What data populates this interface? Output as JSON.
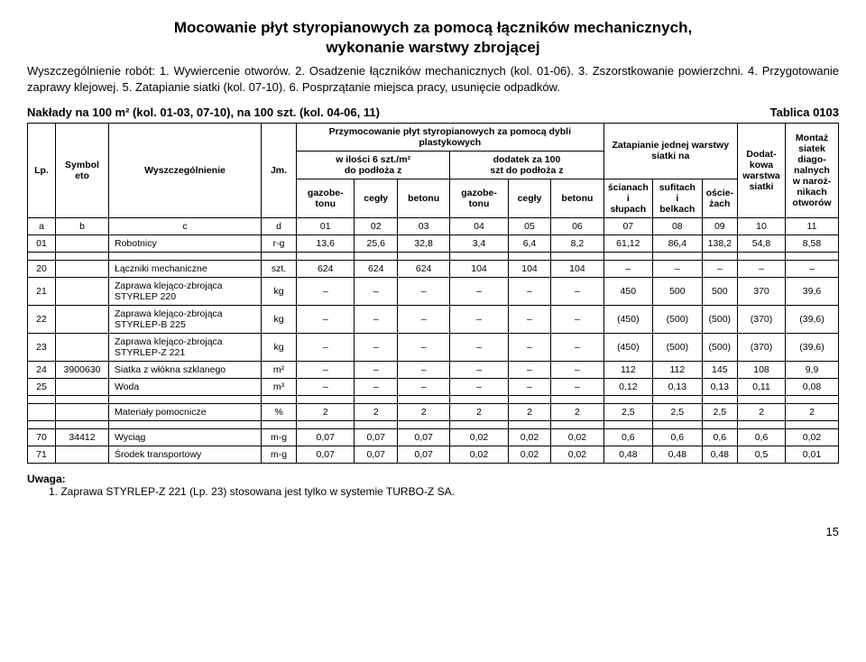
{
  "title_line1": "Mocowanie płyt styropianowych za pomocą łączników mechanicznych,",
  "title_line2": "wykonanie warstwy zbrojącej",
  "description": "Wyszczególnienie robót: 1. Wywiercenie otworów. 2. Osadzenie łączników mechanicznych (kol. 01-06). 3. Zszorstkowanie powierzchni. 4. Przygotowanie zaprawy klejowej. 5. Zatapianie siatki (kol. 07-10). 6. Posprzątanie miejsca pracy, usunięcie odpadków.",
  "naklady": "Nakłady na 100 m² (kol. 01-03, 07-10), na 100 szt. (kol. 04-06, 11)",
  "tablica": "Tablica 0103",
  "header": {
    "lp": "Lp.",
    "symbol": "Symbol\neto",
    "wysz": "Wyszczególnienie",
    "jm": "Jm.",
    "group1": "Przymocowanie płyt styropianowych za pomocą dybli plastykowych",
    "sub1": "w ilości 6 szt./m²\ndo podłoża z",
    "sub2": "dodatek za 100\nszt do podłoża z",
    "group2": "Zatapianie jednej warstwy\nsiatki na",
    "dodat": "Dodat-\nkowa\nwarstwa\nsiatki",
    "montaz": "Montaż\nsiatek\ndiago-\nnalnych\nw naroż-\nnikach\notworów",
    "gazo": "gazobe-\ntonu",
    "cegly": "cegły",
    "betonu": "betonu",
    "scian": "ścianach\ni słupach",
    "sufit": "sufitach i\nbelkach",
    "osc": "oście-\nżach"
  },
  "colnums": {
    "a": "a",
    "b": "b",
    "c": "c",
    "d": "d",
    "c01": "01",
    "c02": "02",
    "c03": "03",
    "c04": "04",
    "c05": "05",
    "c06": "06",
    "c07": "07",
    "c08": "08",
    "c09": "09",
    "c10": "10",
    "c11": "11"
  },
  "rows": [
    {
      "lp": "01",
      "sym": "",
      "name": "Robotnicy",
      "jm": "r-g",
      "v": [
        "13,6",
        "25,6",
        "32,8",
        "3,4",
        "6,4",
        "8,2",
        "61,12",
        "86,4",
        "138,2",
        "54,8",
        "8,58"
      ]
    },
    {
      "lp": "20",
      "sym": "",
      "name": "Łączniki mechaniczne",
      "jm": "szt.",
      "v": [
        "624",
        "624",
        "624",
        "104",
        "104",
        "104",
        "–",
        "–",
        "–",
        "–",
        "–"
      ]
    },
    {
      "lp": "21",
      "sym": "",
      "name": "Zaprawa klejąco-zbrojąca\nSTYRLEP 220",
      "jm": "kg",
      "v": [
        "–",
        "–",
        "–",
        "–",
        "–",
        "–",
        "450",
        "500",
        "500",
        "370",
        "39,6"
      ]
    },
    {
      "lp": "22",
      "sym": "",
      "name": "Zaprawa klejąco-zbrojąca\nSTYRLEP-B 225",
      "jm": "kg",
      "v": [
        "–",
        "–",
        "–",
        "–",
        "–",
        "–",
        "(450)",
        "(500)",
        "(500)",
        "(370)",
        "(39,6)"
      ]
    },
    {
      "lp": "23",
      "sym": "",
      "name": "Zaprawa klejąco-zbrojąca\nSTYRLEP-Z 221",
      "jm": "kg",
      "v": [
        "–",
        "–",
        "–",
        "–",
        "–",
        "–",
        "(450)",
        "(500)",
        "(500)",
        "(370)",
        "(39,6)"
      ]
    },
    {
      "lp": "24",
      "sym": "3900630",
      "name": "Siatka z włókna szklanego",
      "jm": "m²",
      "v": [
        "–",
        "–",
        "–",
        "–",
        "–",
        "–",
        "112",
        "112",
        "145",
        "108",
        "9,9"
      ]
    },
    {
      "lp": "25",
      "sym": "",
      "name": "Woda",
      "jm": "m³",
      "v": [
        "–",
        "–",
        "–",
        "–",
        "–",
        "–",
        "0,12",
        "0,13",
        "0,13",
        "0,11",
        "0,08"
      ]
    },
    {
      "lp": "",
      "sym": "",
      "name": "Materiały pomocnicze",
      "jm": "%",
      "v": [
        "2",
        "2",
        "2",
        "2",
        "2",
        "2",
        "2,5",
        "2,5",
        "2,5",
        "2",
        "2"
      ]
    },
    {
      "lp": "70",
      "sym": "34412",
      "name": "Wyciąg",
      "jm": "m-g",
      "v": [
        "0,07",
        "0,07",
        "0,07",
        "0,02",
        "0,02",
        "0,02",
        "0,6",
        "0,6",
        "0,6",
        "0,6",
        "0,02"
      ]
    },
    {
      "lp": "71",
      "sym": "",
      "name": "Środek transportowy",
      "jm": "m-g",
      "v": [
        "0,07",
        "0,07",
        "0,07",
        "0,02",
        "0,02",
        "0,02",
        "0,48",
        "0,48",
        "0,48",
        "0,5",
        "0,01"
      ]
    }
  ],
  "note_label": "Uwaga:",
  "note_text": "1. Zaprawa STYRLEP-Z 221 (Lp. 23) stosowana jest tylko w systemie TURBO-Z SA.",
  "page": "15",
  "spacers": [
    1,
    7,
    8
  ]
}
